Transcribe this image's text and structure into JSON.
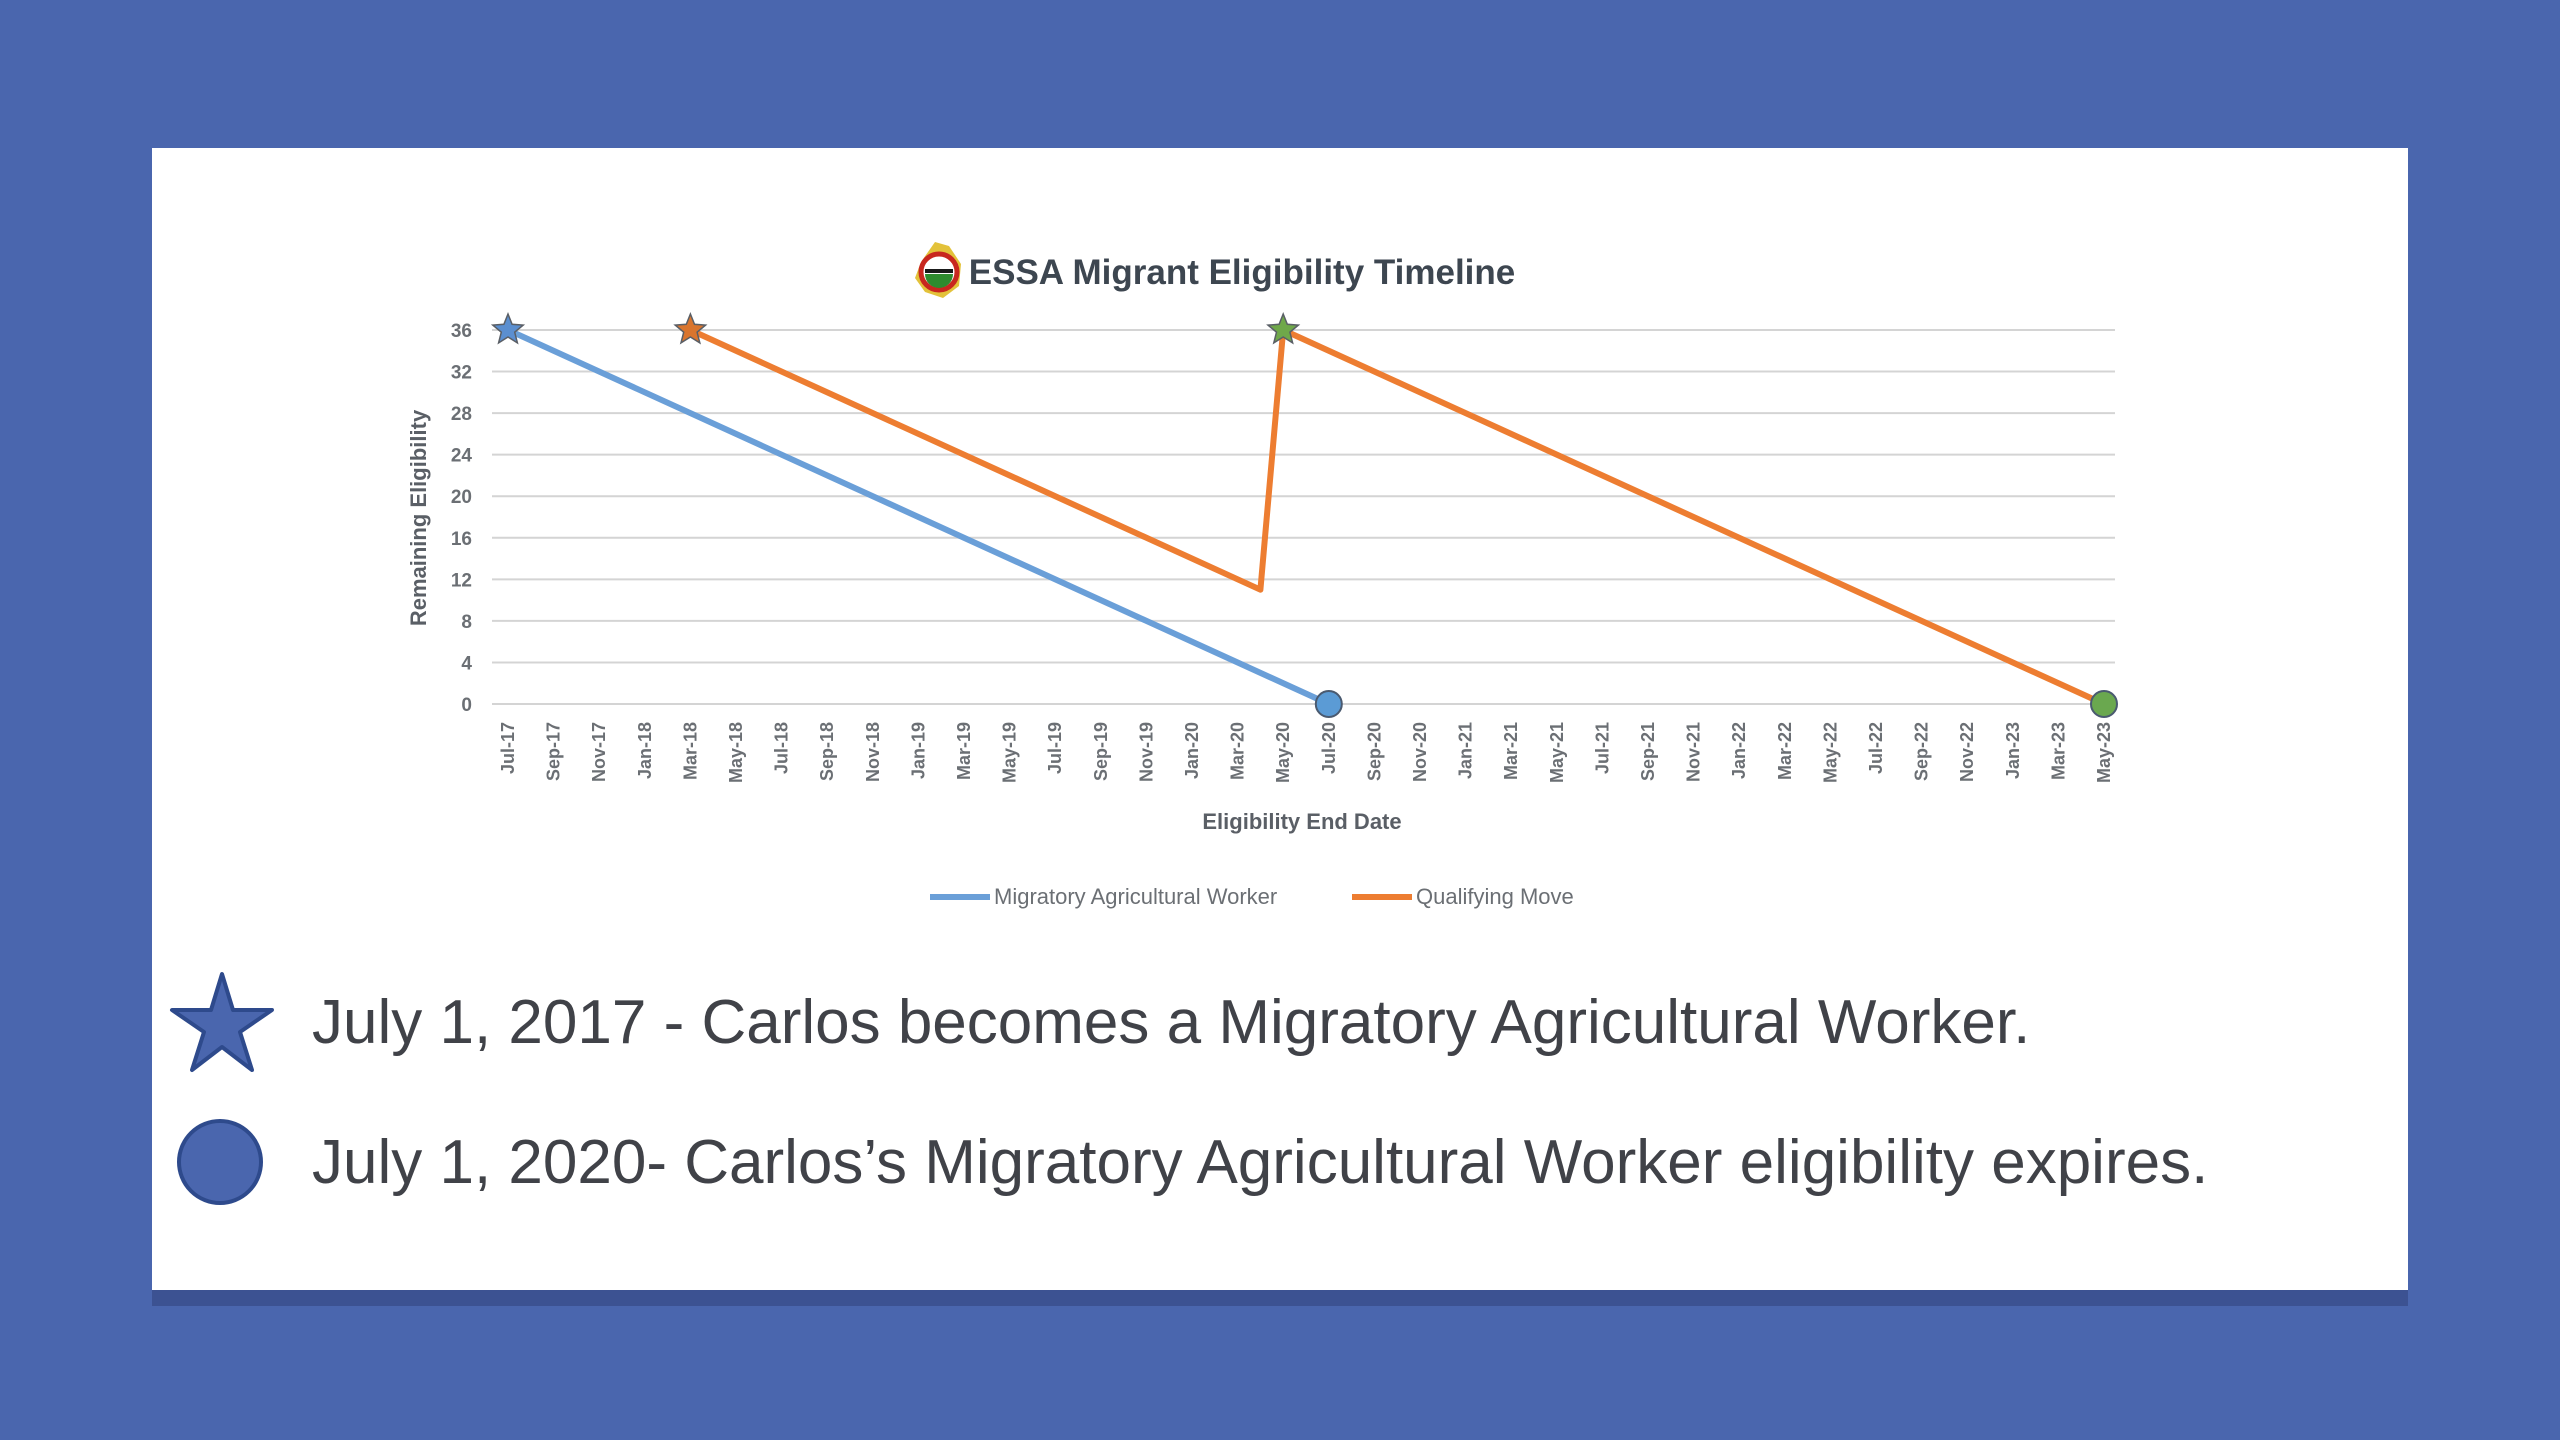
{
  "chart_data": {
    "type": "line",
    "title": "ESSA Migrant Eligibility Timeline",
    "xlabel": "Eligibility End Date",
    "ylabel": "Remaining Eligibility",
    "ylim": [
      0,
      36
    ],
    "yticks": [
      0,
      4,
      8,
      12,
      16,
      20,
      24,
      28,
      32,
      36
    ],
    "x_tick_labels": [
      "Jul-17",
      "Sep-17",
      "Nov-17",
      "Jan-18",
      "Mar-18",
      "May-18",
      "Jul-18",
      "Sep-18",
      "Nov-18",
      "Jan-19",
      "Mar-19",
      "May-19",
      "Jul-19",
      "Sep-19",
      "Nov-19",
      "Jan-20",
      "Mar-20",
      "May-20",
      "Jul-20",
      "Sep-20",
      "Nov-20",
      "Jan-21",
      "Mar-21",
      "May-21",
      "Jul-21",
      "Sep-21",
      "Nov-21",
      "Jan-22",
      "Mar-22",
      "May-22",
      "Jul-22",
      "Sep-22",
      "Nov-22",
      "Jan-23",
      "Mar-23",
      "May-23"
    ],
    "grid": true,
    "legend_position": "bottom",
    "series": [
      {
        "name": "Migratory Agricultural Worker",
        "color": "#6a9fd8",
        "points": [
          {
            "x": "Jul-17",
            "y": 36,
            "marker": "star"
          },
          {
            "x": "Jul-20",
            "y": 0,
            "marker": "circle"
          }
        ]
      },
      {
        "name": "Qualifying Move",
        "color": "#ed7d31",
        "points": [
          {
            "x": "Mar-18",
            "y": 36,
            "marker": "star"
          },
          {
            "x": "Apr-20",
            "y": 11,
            "marker": "none"
          },
          {
            "x": "May-20",
            "y": 36,
            "marker": "star"
          },
          {
            "x": "May-23",
            "y": 0,
            "marker": "circle"
          }
        ]
      }
    ],
    "marker_colors": {
      "Jul-17": "#5b8fd0",
      "Mar-18": "#d9752e",
      "May-20": "#6fa84a",
      "Jul-20": "#5b9bd5",
      "May-23": "#6aa84f"
    }
  },
  "notes": [
    {
      "icon": "star-icon",
      "text": "July 1, 2017 - Carlos becomes a Migratory Agricultural Worker."
    },
    {
      "icon": "circle-icon",
      "text": "July 1, 2020- Carlos’s Migratory Agricultural Worker eligibility expires."
    }
  ],
  "colors": {
    "background": "#4a66ae",
    "card": "#ffffff",
    "icon_fill": "#4a66ae",
    "icon_stroke": "#2e4a8c"
  }
}
